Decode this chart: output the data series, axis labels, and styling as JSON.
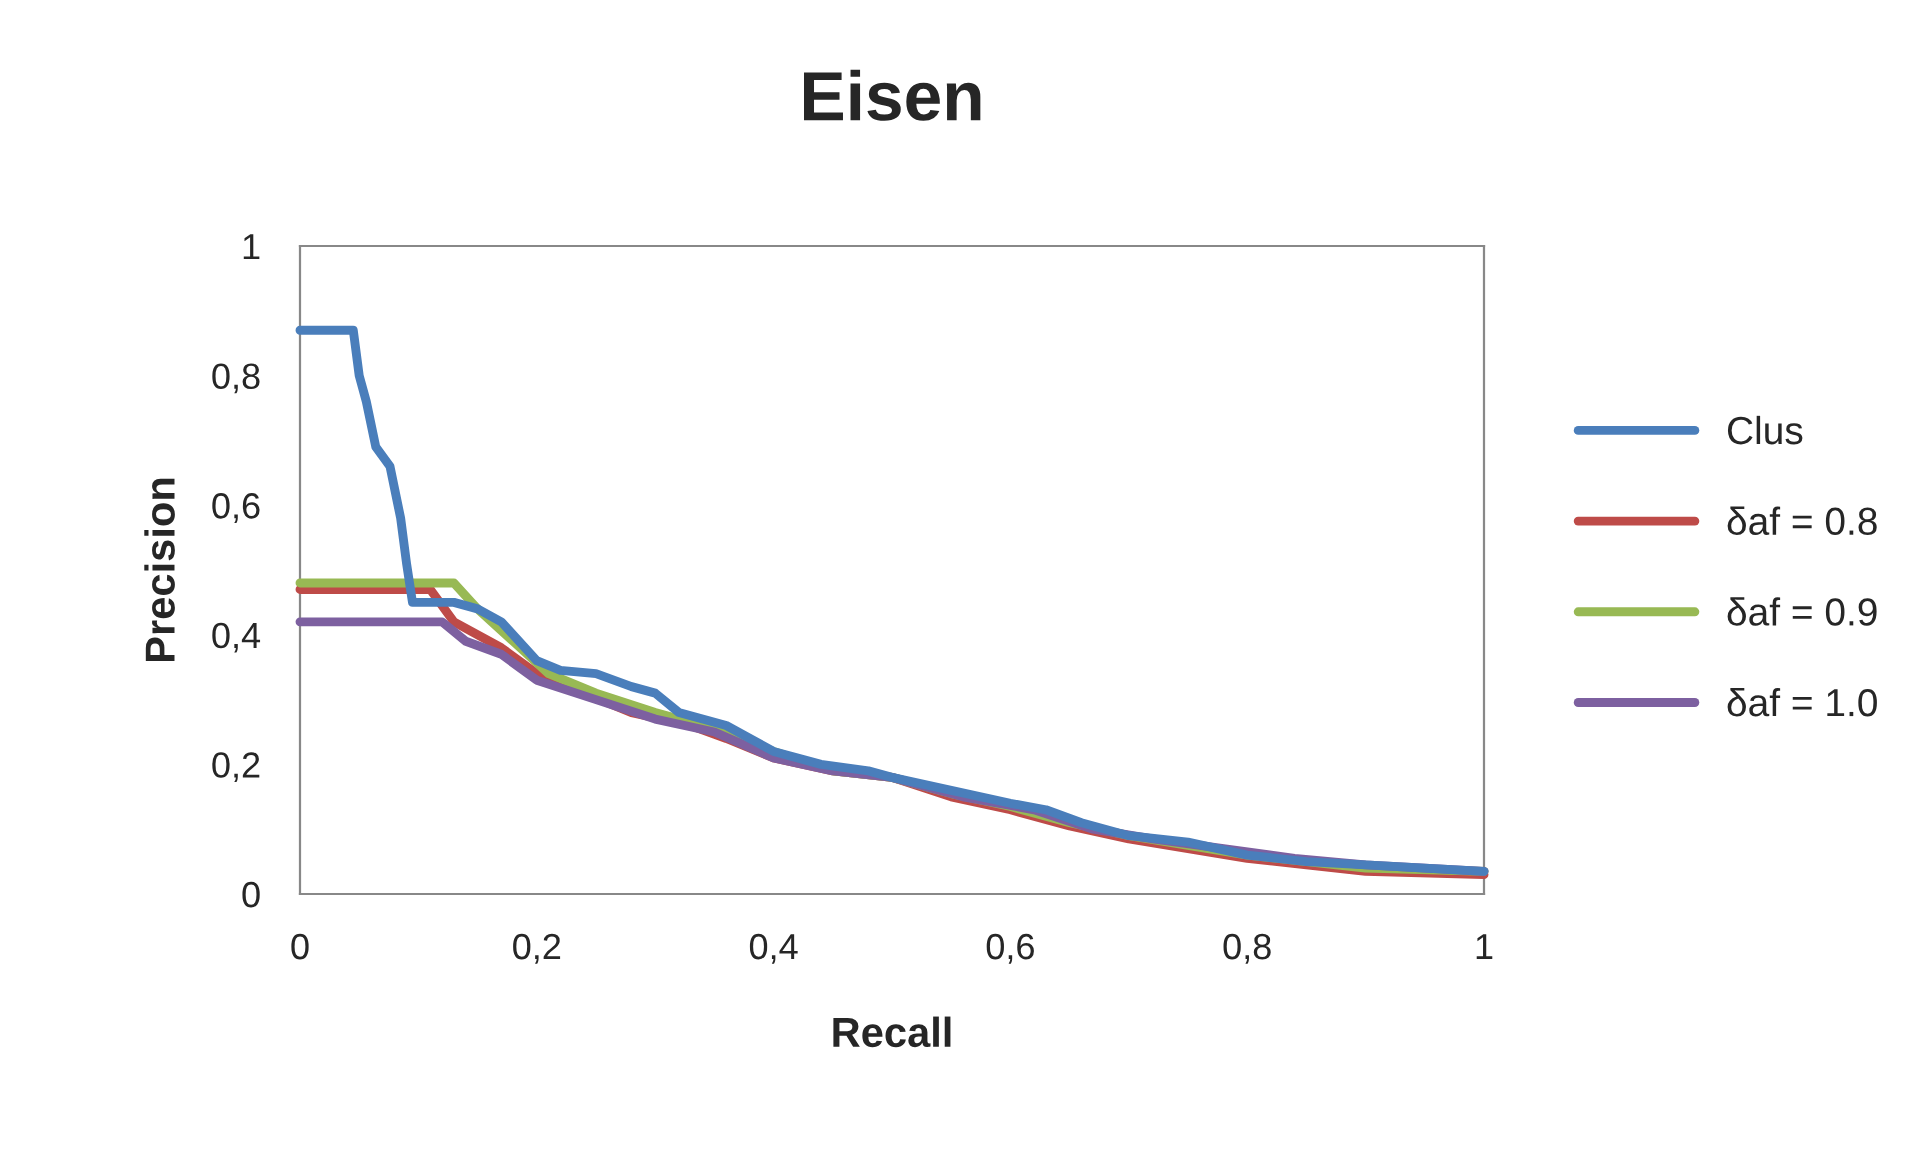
{
  "chart_data": {
    "type": "line",
    "title": "Eisen",
    "xlabel": "Recall",
    "ylabel": "Precision",
    "xlim": [
      0,
      1
    ],
    "ylim": [
      0,
      1
    ],
    "xticks": [
      0,
      {
        "value": 0.2,
        "label": "0,2"
      },
      {
        "value": 0.4,
        "label": "0,4"
      },
      {
        "value": 0.6,
        "label": "0,6"
      },
      {
        "value": 0.8,
        "label": "0,8"
      },
      1
    ],
    "yticks": [
      0,
      {
        "value": 0.2,
        "label": "0,2"
      },
      {
        "value": 0.4,
        "label": "0,4"
      },
      {
        "value": 0.6,
        "label": "0,6"
      },
      {
        "value": 0.8,
        "label": "0,8"
      },
      1
    ],
    "grid": false,
    "legend": "right",
    "marker": "none",
    "line_style": "solid",
    "series": [
      {
        "name": "Clus",
        "color": "#4a7ebb",
        "x": [
          0,
          0.045,
          0.05,
          0.056,
          0.064,
          0.076,
          0.085,
          0.09,
          0.095,
          0.1,
          0.13,
          0.15,
          0.17,
          0.2,
          0.22,
          0.25,
          0.28,
          0.3,
          0.32,
          0.34,
          0.36,
          0.38,
          0.4,
          0.44,
          0.48,
          0.5,
          0.55,
          0.6,
          0.63,
          0.66,
          0.7,
          0.75,
          0.8,
          0.85,
          0.9,
          0.95,
          1
        ],
        "values": [
          0.87,
          0.87,
          0.8,
          0.76,
          0.69,
          0.66,
          0.58,
          0.51,
          0.45,
          0.45,
          0.45,
          0.44,
          0.42,
          0.36,
          0.345,
          0.34,
          0.32,
          0.31,
          0.28,
          0.27,
          0.26,
          0.24,
          0.22,
          0.2,
          0.19,
          0.18,
          0.16,
          0.14,
          0.13,
          0.11,
          0.09,
          0.08,
          0.06,
          0.05,
          0.045,
          0.04,
          0.035
        ]
      },
      {
        "name": "δaf = 0.8",
        "color": "#be4b48",
        "x": [
          0,
          0.11,
          0.13,
          0.17,
          0.2,
          0.24,
          0.28,
          0.33,
          0.36,
          0.4,
          0.45,
          0.5,
          0.55,
          0.6,
          0.65,
          0.7,
          0.75,
          0.8,
          0.85,
          0.9,
          1
        ],
        "values": [
          0.47,
          0.47,
          0.42,
          0.38,
          0.34,
          0.31,
          0.28,
          0.26,
          0.24,
          0.21,
          0.19,
          0.18,
          0.15,
          0.13,
          0.105,
          0.085,
          0.07,
          0.055,
          0.045,
          0.035,
          0.03
        ]
      },
      {
        "name": "δaf = 0.9",
        "color": "#98b954",
        "x": [
          0,
          0.13,
          0.15,
          0.18,
          0.21,
          0.25,
          0.3,
          0.34,
          0.4,
          0.45,
          0.5,
          0.55,
          0.6,
          0.65,
          0.7,
          0.75,
          0.8,
          0.85,
          0.9,
          1
        ],
        "values": [
          0.48,
          0.48,
          0.44,
          0.39,
          0.34,
          0.31,
          0.28,
          0.26,
          0.22,
          0.19,
          0.18,
          0.155,
          0.135,
          0.11,
          0.09,
          0.075,
          0.06,
          0.05,
          0.04,
          0.035
        ]
      },
      {
        "name": "δaf = 1.0",
        "color": "#7d60a0",
        "x": [
          0,
          0.12,
          0.14,
          0.17,
          0.2,
          0.25,
          0.3,
          0.35,
          0.4,
          0.45,
          0.5,
          0.56,
          0.62,
          0.67,
          0.72,
          0.78,
          0.84,
          0.9,
          0.95,
          1
        ],
        "values": [
          0.42,
          0.42,
          0.39,
          0.37,
          0.33,
          0.3,
          0.27,
          0.25,
          0.21,
          0.19,
          0.18,
          0.15,
          0.13,
          0.1,
          0.085,
          0.07,
          0.055,
          0.045,
          0.04,
          0.035
        ]
      }
    ]
  }
}
